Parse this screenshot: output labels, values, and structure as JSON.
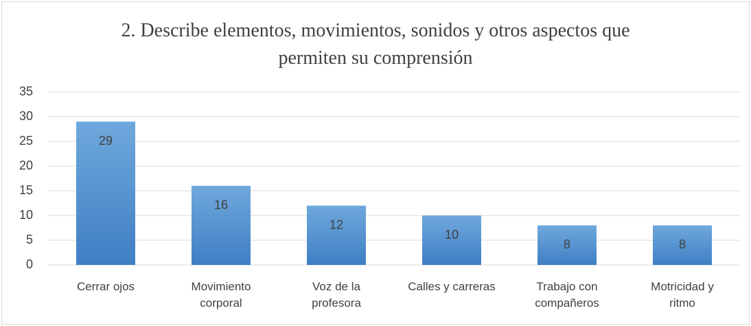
{
  "chart_data": {
    "type": "bar",
    "title": "2. Describe elementos, movimientos, sonidos y otros aspectos que permiten su comprensión",
    "categories": [
      "Cerrar ojos",
      "Movimiento corporal",
      "Voz de la profesora",
      "Calles y carreras",
      "Trabajo con compañeros",
      "Motricidad y ritmo"
    ],
    "values": [
      29,
      16,
      12,
      10,
      8,
      8
    ],
    "color": "#5b9bd5",
    "ylim": [
      0,
      35
    ],
    "yticks": [
      0,
      5,
      10,
      15,
      20,
      25,
      30,
      35
    ],
    "grid": true
  }
}
